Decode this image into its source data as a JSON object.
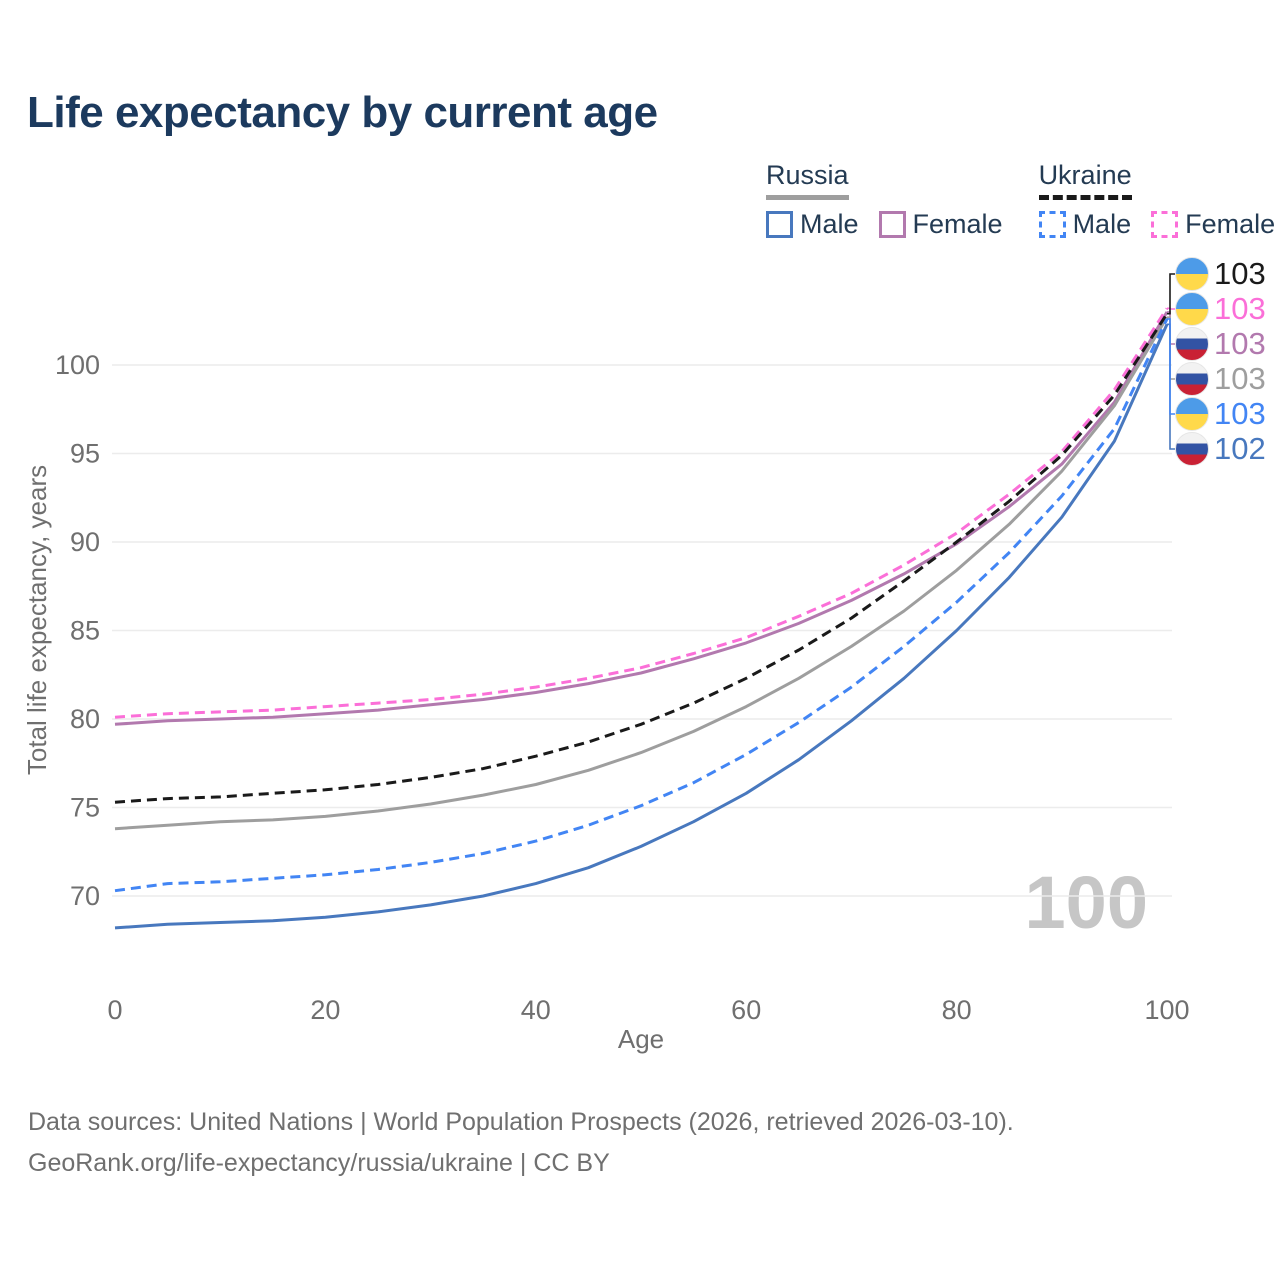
{
  "title": "Life expectancy by current age",
  "legend": {
    "groups": [
      {
        "name": "Russia",
        "line_style": "solid",
        "underline_color": "#9E9E9E",
        "items": [
          {
            "label": "Male",
            "color": "#4878BE",
            "dashed": false
          },
          {
            "label": "Female",
            "color": "#B279AE",
            "dashed": false
          }
        ]
      },
      {
        "name": "Ukraine",
        "line_style": "dashed",
        "underline_color": "#1A1A1A",
        "items": [
          {
            "label": "Male",
            "color": "#4285F4",
            "dashed": true
          },
          {
            "label": "Female",
            "color": "#FB6FD8",
            "dashed": true
          }
        ]
      }
    ]
  },
  "chart_data": {
    "type": "line",
    "title": "Life expectancy by current age",
    "xlabel": "Age",
    "ylabel": "Total life expectancy, years",
    "xlim": [
      0,
      100
    ],
    "ylim": [
      65,
      105
    ],
    "xticks": [
      0,
      20,
      40,
      60,
      80,
      100
    ],
    "yticks": [
      70,
      75,
      80,
      85,
      90,
      95,
      100
    ],
    "grid": true,
    "legend_position": "top-right",
    "age_indicator": "100",
    "x": [
      0,
      5,
      10,
      15,
      20,
      25,
      30,
      35,
      40,
      45,
      50,
      55,
      60,
      65,
      70,
      75,
      80,
      85,
      90,
      95,
      100
    ],
    "series": [
      {
        "key": "russia_female",
        "name": "Russia Female",
        "country": "russia",
        "sex": "female",
        "color": "#B279AE",
        "dashed": false,
        "values": [
          79.7,
          79.9,
          80.0,
          80.1,
          80.3,
          80.5,
          80.8,
          81.1,
          81.5,
          82.0,
          82.6,
          83.4,
          84.3,
          85.4,
          86.7,
          88.2,
          89.9,
          92.0,
          94.4,
          97.9,
          103.0
        ],
        "end_label": {
          "value": "103",
          "slot": 2,
          "flag": "russia"
        }
      },
      {
        "key": "ukraine_female",
        "name": "Ukraine Female",
        "country": "ukraine",
        "sex": "female",
        "color": "#FB6FD8",
        "dashed": true,
        "values": [
          80.1,
          80.3,
          80.4,
          80.5,
          80.7,
          80.9,
          81.1,
          81.4,
          81.8,
          82.3,
          82.9,
          83.7,
          84.6,
          85.8,
          87.1,
          88.7,
          90.5,
          92.7,
          95.1,
          98.6,
          103.2
        ],
        "end_label": {
          "value": "103",
          "slot": 1,
          "flag": "ukraine"
        }
      },
      {
        "key": "russia_total",
        "name": "Russia Both Sexes",
        "country": "russia",
        "sex": "total",
        "color": "#9E9E9E",
        "dashed": false,
        "values": [
          73.8,
          74.0,
          74.2,
          74.3,
          74.5,
          74.8,
          75.2,
          75.7,
          76.3,
          77.1,
          78.1,
          79.3,
          80.7,
          82.3,
          84.1,
          86.1,
          88.4,
          91.0,
          94.0,
          97.7,
          102.7
        ],
        "end_label": {
          "value": "103",
          "slot": 3,
          "flag": "russia"
        }
      },
      {
        "key": "ukraine_total",
        "name": "Ukraine Both Sexes",
        "country": "ukraine",
        "sex": "total",
        "color": "#1A1A1A",
        "dashed": true,
        "values": [
          75.3,
          75.5,
          75.6,
          75.8,
          76.0,
          76.3,
          76.7,
          77.2,
          77.9,
          78.7,
          79.7,
          80.9,
          82.3,
          83.9,
          85.7,
          87.8,
          90.0,
          92.3,
          94.9,
          98.3,
          102.9
        ],
        "end_label": {
          "value": "103",
          "slot": 0,
          "flag": "ukraine"
        }
      },
      {
        "key": "russia_male",
        "name": "Russia Male",
        "country": "russia",
        "sex": "male",
        "color": "#4878BE",
        "dashed": false,
        "values": [
          68.2,
          68.4,
          68.5,
          68.6,
          68.8,
          69.1,
          69.5,
          70.0,
          70.7,
          71.6,
          72.8,
          74.2,
          75.8,
          77.7,
          79.9,
          82.3,
          85.0,
          88.0,
          91.4,
          95.7,
          102.3
        ],
        "end_label": {
          "value": "102",
          "slot": 5,
          "flag": "russia"
        }
      },
      {
        "key": "ukraine_male",
        "name": "Ukraine Male",
        "country": "ukraine",
        "sex": "male",
        "color": "#4285F4",
        "dashed": true,
        "values": [
          70.3,
          70.7,
          70.8,
          71.0,
          71.2,
          71.5,
          71.9,
          72.4,
          73.1,
          74.0,
          75.1,
          76.4,
          78.0,
          79.8,
          81.8,
          84.1,
          86.6,
          89.4,
          92.6,
          96.4,
          102.6
        ],
        "end_label": {
          "value": "103",
          "slot": 4,
          "flag": "ukraine"
        }
      }
    ]
  },
  "flags": {
    "ukraine": {
      "top": "#4D9BE8",
      "bottom": "#FFD94A"
    },
    "russia": {
      "top": "#F2F2F2",
      "middle": "#3253A4",
      "bottom": "#C92134"
    }
  },
  "colors": {
    "title_text": "#1C3A5E",
    "legend_text": "#243B53",
    "axis_text": "#6F6F6F",
    "grid_line": "#ECECEC",
    "watermark": "#C6C6C6",
    "footer_text": "#6F6F6F"
  },
  "footer": {
    "line1": "Data sources: United Nations | World Population Prospects (2026, retrieved 2026-03-10).",
    "line2": "GeoRank.org/life-expectancy/russia/ukraine | CC BY"
  }
}
